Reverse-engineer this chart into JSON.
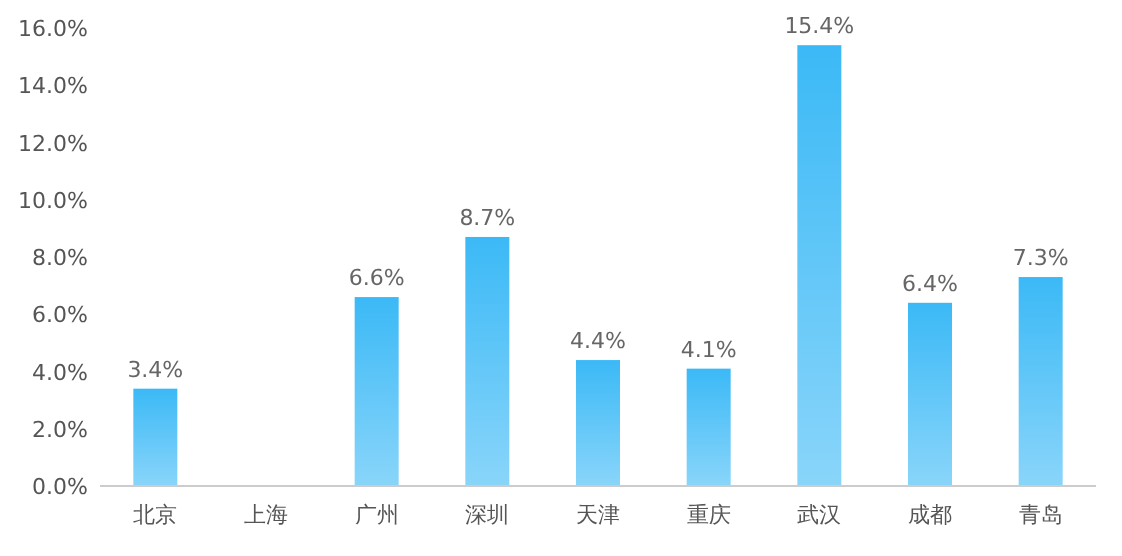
{
  "chart_data": {
    "type": "bar",
    "categories": [
      "北京",
      "上海",
      "广州",
      "深圳",
      "天津",
      "重庆",
      "武汉",
      "成都",
      "青岛"
    ],
    "values": [
      3.4,
      null,
      6.6,
      8.7,
      4.4,
      4.1,
      15.4,
      6.4,
      7.3
    ],
    "value_labels": [
      "3.4%",
      null,
      "6.6%",
      "8.7%",
      "4.4%",
      "4.1%",
      "15.4%",
      "6.4%",
      "7.3%"
    ],
    "color": "#3bb9f6",
    "ylim": [
      0,
      16
    ],
    "yticks": [
      {
        "value": 0,
        "label": "0.0%"
      },
      {
        "value": 2,
        "label": "2.0%"
      },
      {
        "value": 4,
        "label": "4.0%"
      },
      {
        "value": 6,
        "label": "6.0%"
      },
      {
        "value": 8,
        "label": "8.0%"
      },
      {
        "value": 10,
        "label": "10.0%"
      },
      {
        "value": 12,
        "label": "12.0%"
      },
      {
        "value": 14,
        "label": "14.0%"
      },
      {
        "value": 16,
        "label": "16.0%"
      }
    ],
    "grid": false
  }
}
